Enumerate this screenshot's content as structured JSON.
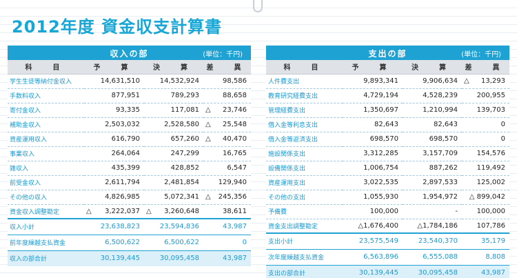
{
  "title": "2012年度 資金収支計算書",
  "income": {
    "heading": "収入の部",
    "unit": "(単位：千円)",
    "columns": [
      "科　目",
      "予　算",
      "決　算",
      "差　異"
    ],
    "rows": [
      {
        "label": "学生生徒等納付金収入",
        "budget": "14,631,510",
        "actual": "14,532,924",
        "diff": "98,586",
        "diff_tri": ""
      },
      {
        "label": "手数料収入",
        "budget": "877,951",
        "actual": "789,293",
        "diff": "88,658",
        "diff_tri": ""
      },
      {
        "label": "寄付金収入",
        "budget": "93,335",
        "actual": "117,081",
        "diff": "23,746",
        "diff_tri": "△"
      },
      {
        "label": "補助金収入",
        "budget": "2,503,032",
        "actual": "2,528,580",
        "diff": "25,548",
        "diff_tri": "△"
      },
      {
        "label": "資産運用収入",
        "budget": "616,790",
        "actual": "657,260",
        "diff": "40,470",
        "diff_tri": "△"
      },
      {
        "label": "事業収入",
        "budget": "264,064",
        "actual": "247,299",
        "diff": "16,765",
        "diff_tri": ""
      },
      {
        "label": "雑収入",
        "budget": "435,399",
        "actual": "428,852",
        "diff": "6,547",
        "diff_tri": ""
      },
      {
        "label": "前受金収入",
        "budget": "2,611,794",
        "actual": "2,481,854",
        "diff": "129,940",
        "diff_tri": ""
      },
      {
        "label": "その他の収入",
        "budget": "4,826,985",
        "actual": "5,072,341",
        "diff": "245,356",
        "diff_tri": "△"
      },
      {
        "label": "資金収入調整勘定",
        "budget": "3,222,037",
        "budget_tri": "△",
        "actual": "3,260,648",
        "actual_tri": "△",
        "diff": "38,611",
        "diff_tri": ""
      }
    ],
    "subtotal": {
      "label": "収入小計",
      "budget": "23,638,823",
      "actual": "23,594,836",
      "diff": "43,987"
    },
    "carry": {
      "label": "前年度繰越支払資金",
      "budget": "6,500,622",
      "actual": "6,500,622",
      "diff": "0"
    },
    "total": {
      "label": "収入の部合計",
      "budget": "30,139,445",
      "actual": "30,095,458",
      "diff": "43,987"
    }
  },
  "expense": {
    "heading": "支出の部",
    "unit": "(単位：千円)",
    "columns": [
      "科　目",
      "予　算",
      "決　算",
      "差　異"
    ],
    "rows": [
      {
        "label": "人件費支出",
        "budget": "9,893,341",
        "actual": "9,906,634",
        "diff": "13,293",
        "diff_tri": "△"
      },
      {
        "label": "教育研究経費支出",
        "budget": "4,729,194",
        "actual": "4,528,239",
        "diff": "200,955",
        "diff_tri": ""
      },
      {
        "label": "管理経費支出",
        "budget": "1,350,697",
        "actual": "1,210,994",
        "diff": "139,703",
        "diff_tri": ""
      },
      {
        "label": "借入金等利息支出",
        "budget": "82,643",
        "actual": "82,643",
        "diff": "0",
        "diff_tri": ""
      },
      {
        "label": "借入金等返済支出",
        "budget": "698,570",
        "actual": "698,570",
        "diff": "0",
        "diff_tri": ""
      },
      {
        "label": "施設関係支出",
        "budget": "3,312,285",
        "actual": "3,157,709",
        "diff": "154,576",
        "diff_tri": ""
      },
      {
        "label": "設備関係支出",
        "budget": "1,006,754",
        "actual": "887,262",
        "diff": "119,492",
        "diff_tri": ""
      },
      {
        "label": "資産運用支出",
        "budget": "3,022,535",
        "actual": "2,897,533",
        "diff": "125,002",
        "diff_tri": ""
      },
      {
        "label": "その他の支出",
        "budget": "1,055,930",
        "actual": "1,954,972",
        "diff": "△ 899,042",
        "diff_tri": ""
      },
      {
        "label": "予備費",
        "budget": "100,000",
        "actual": "-",
        "diff": "100,000",
        "diff_tri": ""
      },
      {
        "label": "資金支出調整勘定",
        "budget": "△1,676,400",
        "actual": "△1,784,186",
        "diff": "107,786",
        "diff_tri": ""
      }
    ],
    "subtotal": {
      "label": "支出小計",
      "budget": "23,575,549",
      "actual": "23,540,370",
      "diff": "35,179"
    },
    "carry": {
      "label": "次年度繰越支払資金",
      "budget": "6,563,896",
      "actual": "6,555,088",
      "diff": "8,808"
    },
    "total": {
      "label": "支出の部合計",
      "budget": "30,139,445",
      "actual": "30,095,458",
      "diff": "43,987"
    }
  }
}
